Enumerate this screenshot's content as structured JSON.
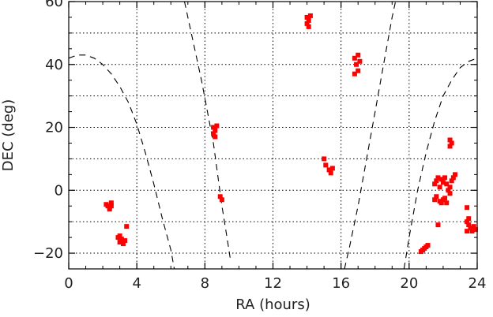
{
  "chart_data": {
    "type": "scatter",
    "title": "",
    "xlabel": "RA (hours)",
    "ylabel": "DEC (deg)",
    "xlim": [
      0,
      24
    ],
    "ylim": [
      -25,
      60
    ],
    "x_ticks": [
      0,
      4,
      8,
      12,
      16,
      20,
      24
    ],
    "y_ticks": [
      -20,
      0,
      20,
      40,
      60
    ],
    "x_gridlines": [
      4,
      8,
      12,
      16,
      20
    ],
    "y_gridlines": [
      -20,
      -10,
      0,
      10,
      20,
      30,
      40,
      50
    ],
    "grid": true,
    "grid_style": "dotted",
    "colors": {
      "points": "#ff0000",
      "curve": "#000000",
      "grid": "#000000",
      "axes": "#000000"
    },
    "series": [
      {
        "kind": "points",
        "points": [
          [
            2.2,
            -4.5
          ],
          [
            2.3,
            -5.0
          ],
          [
            2.4,
            -5.5
          ],
          [
            2.5,
            -5.0
          ],
          [
            2.4,
            -6.0
          ],
          [
            2.5,
            -4.0
          ],
          [
            2.9,
            -15.0
          ],
          [
            3.0,
            -16.5
          ],
          [
            3.1,
            -15.5
          ],
          [
            3.2,
            -17.0
          ],
          [
            3.3,
            -16.0
          ],
          [
            3.0,
            -14.5
          ],
          [
            3.4,
            -11.5
          ],
          [
            8.5,
            20.0
          ],
          [
            8.6,
            19.0
          ],
          [
            8.5,
            18.0
          ],
          [
            8.6,
            17.0
          ],
          [
            8.7,
            20.5
          ],
          [
            8.9,
            -2.0
          ],
          [
            9.0,
            -3.0
          ],
          [
            14.0,
            55.0
          ],
          [
            14.1,
            54.0
          ],
          [
            14.0,
            53.0
          ],
          [
            14.2,
            55.5
          ],
          [
            14.1,
            52.0
          ],
          [
            15.0,
            10.0
          ],
          [
            15.1,
            8.0
          ],
          [
            15.3,
            6.5
          ],
          [
            15.4,
            5.5
          ],
          [
            15.5,
            7.0
          ],
          [
            16.8,
            42.0
          ],
          [
            16.9,
            40.0
          ],
          [
            17.0,
            38.0
          ],
          [
            16.8,
            37.0
          ],
          [
            17.1,
            41.0
          ],
          [
            17.0,
            43.0
          ],
          [
            20.7,
            -19.5
          ],
          [
            20.8,
            -19.0
          ],
          [
            20.9,
            -18.5
          ],
          [
            21.0,
            -18.0
          ],
          [
            21.1,
            -17.5
          ],
          [
            21.5,
            2.0
          ],
          [
            21.6,
            3.0
          ],
          [
            21.7,
            4.0
          ],
          [
            21.8,
            1.0
          ],
          [
            21.9,
            3.5
          ],
          [
            22.0,
            2.5
          ],
          [
            22.1,
            4.0
          ],
          [
            21.5,
            -3.0
          ],
          [
            21.6,
            -2.0
          ],
          [
            21.8,
            -3.5
          ],
          [
            22.0,
            -3.0
          ],
          [
            22.1,
            -2.5
          ],
          [
            21.9,
            -4.0
          ],
          [
            22.3,
            0.0
          ],
          [
            22.4,
            1.0
          ],
          [
            22.2,
            2.0
          ],
          [
            22.6,
            4.0
          ],
          [
            22.7,
            5.0
          ],
          [
            22.5,
            3.0
          ],
          [
            22.4,
            -1.0
          ],
          [
            22.2,
            -4.0
          ],
          [
            22.4,
            14.0
          ],
          [
            22.5,
            15.0
          ],
          [
            22.4,
            16.0
          ],
          [
            23.4,
            -10.0
          ],
          [
            23.5,
            -11.0
          ],
          [
            23.6,
            -12.0
          ],
          [
            23.7,
            -13.0
          ],
          [
            23.4,
            -13.0
          ],
          [
            23.5,
            -9.0
          ],
          [
            23.8,
            -11.5
          ],
          [
            23.9,
            -12.5
          ],
          [
            23.4,
            -5.5
          ],
          [
            21.7,
            -11.0
          ]
        ]
      },
      {
        "kind": "curve",
        "dash": "long-dash",
        "segments": [
          [
            [
              0.0,
              42.0
            ],
            [
              0.5,
              43.0
            ],
            [
              1.0,
              43.0
            ],
            [
              1.5,
              42.0
            ],
            [
              2.0,
              40.0
            ],
            [
              2.5,
              37.0
            ],
            [
              3.0,
              33.0
            ],
            [
              3.5,
              28.0
            ],
            [
              4.0,
              21.0
            ],
            [
              4.5,
              12.0
            ],
            [
              5.0,
              2.0
            ],
            [
              5.5,
              -9.0
            ],
            [
              6.0,
              -19.0
            ],
            [
              6.2,
              -25.0
            ]
          ],
          [
            [
              6.8,
              60.0
            ],
            [
              7.2,
              50.0
            ],
            [
              7.8,
              35.0
            ],
            [
              8.5,
              15.0
            ],
            [
              9.0,
              -5.0
            ],
            [
              9.3,
              -15.0
            ],
            [
              9.5,
              -22.0
            ]
          ],
          [
            [
              16.2,
              -25.0
            ],
            [
              16.5,
              -18.0
            ],
            [
              17.0,
              -5.0
            ],
            [
              17.5,
              10.0
            ],
            [
              18.0,
              25.0
            ],
            [
              18.5,
              40.0
            ],
            [
              19.0,
              55.0
            ],
            [
              19.2,
              60.0
            ]
          ],
          [
            [
              19.7,
              -25.0
            ],
            [
              20.0,
              -15.0
            ],
            [
              20.5,
              0.0
            ],
            [
              21.0,
              12.0
            ],
            [
              21.5,
              22.0
            ],
            [
              22.0,
              30.0
            ],
            [
              22.5,
              35.0
            ],
            [
              23.0,
              39.0
            ],
            [
              23.5,
              41.0
            ],
            [
              24.0,
              42.0
            ]
          ]
        ]
      }
    ]
  }
}
